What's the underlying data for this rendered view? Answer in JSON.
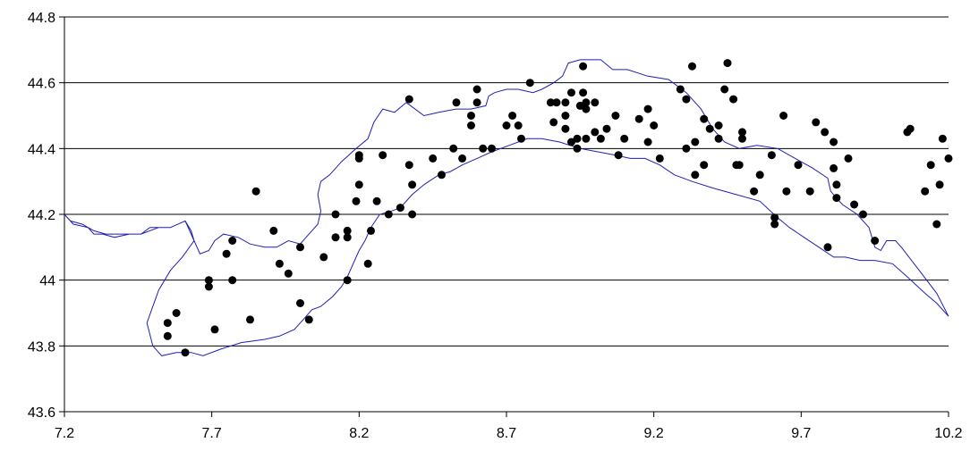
{
  "chart_data": {
    "type": "scatter",
    "title": "",
    "xlabel": "",
    "ylabel": "",
    "xlim": [
      7.2,
      10.2
    ],
    "ylim": [
      43.6,
      44.8
    ],
    "x_ticks": [
      "7.2",
      "7.7",
      "8.2",
      "8.7",
      "9.2",
      "9.7",
      "10.2"
    ],
    "y_ticks": [
      "44.8",
      "44.6",
      "44.4",
      "44.2",
      "44",
      "43.8",
      "43.6"
    ],
    "x_tick_values": [
      7.2,
      7.7,
      8.2,
      8.7,
      9.2,
      9.7,
      10.2
    ],
    "y_tick_values": [
      44.8,
      44.6,
      44.4,
      44.2,
      44.0,
      43.8,
      43.6
    ],
    "grid": "horizontal",
    "legend": "none",
    "colors": {
      "points": "#000000",
      "outline": "#1f1fb4",
      "grid": "#000000"
    },
    "series": [
      {
        "type": "scatter",
        "points": [
          [
            7.55,
            43.87
          ],
          [
            7.55,
            43.83
          ],
          [
            7.58,
            43.9
          ],
          [
            7.61,
            43.78
          ],
          [
            7.69,
            44.0
          ],
          [
            7.69,
            43.98
          ],
          [
            7.71,
            43.85
          ],
          [
            7.75,
            44.08
          ],
          [
            7.77,
            44.12
          ],
          [
            7.77,
            44.0
          ],
          [
            7.83,
            43.88
          ],
          [
            7.85,
            44.27
          ],
          [
            7.91,
            44.15
          ],
          [
            7.93,
            44.05
          ],
          [
            7.96,
            44.02
          ],
          [
            8.0,
            44.1
          ],
          [
            8.0,
            43.93
          ],
          [
            8.03,
            43.88
          ],
          [
            8.08,
            44.07
          ],
          [
            8.12,
            44.2
          ],
          [
            8.12,
            44.13
          ],
          [
            8.16,
            44.15
          ],
          [
            8.16,
            44.13
          ],
          [
            8.16,
            44.0
          ],
          [
            8.19,
            44.24
          ],
          [
            8.2,
            44.37
          ],
          [
            8.2,
            44.38
          ],
          [
            8.2,
            44.29
          ],
          [
            8.23,
            44.05
          ],
          [
            8.24,
            44.15
          ],
          [
            8.26,
            44.24
          ],
          [
            8.28,
            44.38
          ],
          [
            8.3,
            44.2
          ],
          [
            8.34,
            44.22
          ],
          [
            8.37,
            44.55
          ],
          [
            8.37,
            44.35
          ],
          [
            8.38,
            44.29
          ],
          [
            8.38,
            44.2
          ],
          [
            8.45,
            44.37
          ],
          [
            8.48,
            44.32
          ],
          [
            8.52,
            44.4
          ],
          [
            8.53,
            44.54
          ],
          [
            8.55,
            44.37
          ],
          [
            8.58,
            44.5
          ],
          [
            8.58,
            44.47
          ],
          [
            8.6,
            44.54
          ],
          [
            8.6,
            44.58
          ],
          [
            8.62,
            44.4
          ],
          [
            8.65,
            44.4
          ],
          [
            8.7,
            44.47
          ],
          [
            8.72,
            44.5
          ],
          [
            8.74,
            44.47
          ],
          [
            8.75,
            44.43
          ],
          [
            8.78,
            44.6
          ],
          [
            8.85,
            44.54
          ],
          [
            8.86,
            44.48
          ],
          [
            8.87,
            44.54
          ],
          [
            8.9,
            44.54
          ],
          [
            8.9,
            44.5
          ],
          [
            8.9,
            44.46
          ],
          [
            8.92,
            44.57
          ],
          [
            8.92,
            44.42
          ],
          [
            8.94,
            44.4
          ],
          [
            8.94,
            44.43
          ],
          [
            8.95,
            44.53
          ],
          [
            8.96,
            44.57
          ],
          [
            8.96,
            44.65
          ],
          [
            8.97,
            44.52
          ],
          [
            8.97,
            44.54
          ],
          [
            8.97,
            44.43
          ],
          [
            9.0,
            44.45
          ],
          [
            9.0,
            44.54
          ],
          [
            9.02,
            44.43
          ],
          [
            9.04,
            44.46
          ],
          [
            9.07,
            44.5
          ],
          [
            9.08,
            44.38
          ],
          [
            9.1,
            44.43
          ],
          [
            9.15,
            44.49
          ],
          [
            9.18,
            44.42
          ],
          [
            9.18,
            44.52
          ],
          [
            9.2,
            44.47
          ],
          [
            9.22,
            44.37
          ],
          [
            9.29,
            44.58
          ],
          [
            9.31,
            44.4
          ],
          [
            9.31,
            44.55
          ],
          [
            9.33,
            44.65
          ],
          [
            9.34,
            44.42
          ],
          [
            9.34,
            44.32
          ],
          [
            9.37,
            44.49
          ],
          [
            9.37,
            44.35
          ],
          [
            9.39,
            44.46
          ],
          [
            9.42,
            44.47
          ],
          [
            9.42,
            44.43
          ],
          [
            9.44,
            44.58
          ],
          [
            9.45,
            44.66
          ],
          [
            9.47,
            44.55
          ],
          [
            9.48,
            44.35
          ],
          [
            9.49,
            44.35
          ],
          [
            9.5,
            44.45
          ],
          [
            9.5,
            44.43
          ],
          [
            9.54,
            44.27
          ],
          [
            9.56,
            44.32
          ],
          [
            9.6,
            44.38
          ],
          [
            9.61,
            44.19
          ],
          [
            9.61,
            44.17
          ],
          [
            9.64,
            44.5
          ],
          [
            9.65,
            44.27
          ],
          [
            9.69,
            44.35
          ],
          [
            9.73,
            44.27
          ],
          [
            9.75,
            44.48
          ],
          [
            9.78,
            44.45
          ],
          [
            9.79,
            44.1
          ],
          [
            9.81,
            44.42
          ],
          [
            9.81,
            44.34
          ],
          [
            9.82,
            44.25
          ],
          [
            9.82,
            44.29
          ],
          [
            9.86,
            44.37
          ],
          [
            9.88,
            44.23
          ],
          [
            9.91,
            44.2
          ],
          [
            9.95,
            44.12
          ],
          [
            10.06,
            44.45
          ],
          [
            10.07,
            44.46
          ],
          [
            10.12,
            44.27
          ],
          [
            10.14,
            44.35
          ],
          [
            10.16,
            44.17
          ],
          [
            10.17,
            44.29
          ],
          [
            10.18,
            44.43
          ],
          [
            10.2,
            44.37
          ]
        ]
      },
      {
        "type": "line",
        "closed": true,
        "points": [
          [
            7.2,
            44.2
          ],
          [
            7.23,
            44.17
          ],
          [
            7.28,
            44.16
          ],
          [
            7.3,
            44.14
          ],
          [
            7.33,
            44.14
          ],
          [
            7.37,
            44.13
          ],
          [
            7.42,
            44.14
          ],
          [
            7.46,
            44.14
          ],
          [
            7.49,
            44.16
          ],
          [
            7.52,
            44.16
          ],
          [
            7.56,
            44.16
          ],
          [
            7.61,
            44.18
          ],
          [
            7.63,
            44.15
          ],
          [
            7.64,
            44.12
          ],
          [
            7.6,
            44.07
          ],
          [
            7.56,
            44.03
          ],
          [
            7.52,
            43.97
          ],
          [
            7.5,
            43.92
          ],
          [
            7.48,
            43.87
          ],
          [
            7.5,
            43.8
          ],
          [
            7.53,
            43.77
          ],
          [
            7.58,
            43.78
          ],
          [
            7.63,
            43.78
          ],
          [
            7.67,
            43.77
          ],
          [
            7.73,
            43.79
          ],
          [
            7.8,
            43.81
          ],
          [
            7.88,
            43.82
          ],
          [
            7.93,
            43.83
          ],
          [
            7.98,
            43.85
          ],
          [
            8.01,
            43.88
          ],
          [
            8.04,
            43.91
          ],
          [
            8.07,
            43.92
          ],
          [
            8.11,
            43.95
          ],
          [
            8.14,
            43.98
          ],
          [
            8.16,
            44.01
          ],
          [
            8.18,
            44.05
          ],
          [
            8.2,
            44.09
          ],
          [
            8.22,
            44.12
          ],
          [
            8.24,
            44.16
          ],
          [
            8.27,
            44.2
          ],
          [
            8.31,
            44.21
          ],
          [
            8.34,
            44.22
          ],
          [
            8.38,
            44.26
          ],
          [
            8.42,
            44.29
          ],
          [
            8.47,
            44.32
          ],
          [
            8.51,
            44.33
          ],
          [
            8.55,
            44.35
          ],
          [
            8.6,
            44.37
          ],
          [
            8.65,
            44.39
          ],
          [
            8.71,
            44.41
          ],
          [
            8.77,
            44.43
          ],
          [
            8.82,
            44.43
          ],
          [
            8.88,
            44.42
          ],
          [
            8.95,
            44.4
          ],
          [
            9.01,
            44.39
          ],
          [
            9.07,
            44.38
          ],
          [
            9.12,
            44.37
          ],
          [
            9.17,
            44.37
          ],
          [
            9.22,
            44.35
          ],
          [
            9.27,
            44.32
          ],
          [
            9.33,
            44.3
          ],
          [
            9.4,
            44.28
          ],
          [
            9.48,
            44.26
          ],
          [
            9.56,
            44.24
          ],
          [
            9.62,
            44.19
          ],
          [
            9.66,
            44.16
          ],
          [
            9.71,
            44.13
          ],
          [
            9.76,
            44.1
          ],
          [
            9.81,
            44.07
          ],
          [
            9.85,
            44.07
          ],
          [
            9.9,
            44.06
          ],
          [
            9.95,
            44.06
          ],
          [
            10.01,
            44.05
          ],
          [
            10.06,
            44.01
          ],
          [
            10.12,
            43.96
          ],
          [
            10.16,
            43.93
          ],
          [
            10.2,
            43.89
          ],
          [
            10.16,
            43.96
          ],
          [
            10.1,
            44.03
          ],
          [
            10.04,
            44.1
          ],
          [
            10.02,
            44.12
          ],
          [
            9.99,
            44.12
          ],
          [
            9.97,
            44.09
          ],
          [
            9.95,
            44.1
          ],
          [
            9.93,
            44.16
          ],
          [
            9.89,
            44.2
          ],
          [
            9.84,
            44.23
          ],
          [
            9.8,
            44.27
          ],
          [
            9.79,
            44.31
          ],
          [
            9.74,
            44.34
          ],
          [
            9.68,
            44.37
          ],
          [
            9.62,
            44.4
          ],
          [
            9.55,
            44.41
          ],
          [
            9.49,
            44.4
          ],
          [
            9.44,
            44.42
          ],
          [
            9.4,
            44.46
          ],
          [
            9.36,
            44.52
          ],
          [
            9.31,
            44.57
          ],
          [
            9.25,
            44.61
          ],
          [
            9.18,
            44.62
          ],
          [
            9.11,
            44.64
          ],
          [
            9.06,
            44.64
          ],
          [
            9.02,
            44.67
          ],
          [
            8.95,
            44.67
          ],
          [
            8.91,
            44.66
          ],
          [
            8.89,
            44.62
          ],
          [
            8.86,
            44.6
          ],
          [
            8.82,
            44.58
          ],
          [
            8.79,
            44.57
          ],
          [
            8.74,
            44.58
          ],
          [
            8.7,
            44.58
          ],
          [
            8.66,
            44.57
          ],
          [
            8.64,
            44.56
          ],
          [
            8.63,
            44.53
          ],
          [
            8.58,
            44.52
          ],
          [
            8.53,
            44.52
          ],
          [
            8.47,
            44.51
          ],
          [
            8.42,
            44.5
          ],
          [
            8.36,
            44.54
          ],
          [
            8.32,
            44.51
          ],
          [
            8.28,
            44.52
          ],
          [
            8.25,
            44.48
          ],
          [
            8.23,
            44.43
          ],
          [
            8.19,
            44.4
          ],
          [
            8.14,
            44.36
          ],
          [
            8.1,
            44.32
          ],
          [
            8.07,
            44.3
          ],
          [
            8.06,
            44.26
          ],
          [
            8.07,
            44.21
          ],
          [
            8.06,
            44.17
          ],
          [
            8.03,
            44.14
          ],
          [
            8.0,
            44.11
          ],
          [
            7.96,
            44.12
          ],
          [
            7.92,
            44.1
          ],
          [
            7.88,
            44.1
          ],
          [
            7.83,
            44.11
          ],
          [
            7.79,
            44.13
          ],
          [
            7.74,
            44.14
          ],
          [
            7.71,
            44.12
          ],
          [
            7.69,
            44.09
          ],
          [
            7.66,
            44.08
          ],
          [
            7.64,
            44.12
          ],
          [
            7.61,
            44.18
          ],
          [
            7.56,
            44.16
          ],
          [
            7.52,
            44.16
          ],
          [
            7.46,
            44.14
          ],
          [
            7.4,
            44.14
          ],
          [
            7.34,
            44.14
          ],
          [
            7.3,
            44.15
          ],
          [
            7.26,
            44.17
          ],
          [
            7.22,
            44.18
          ],
          [
            7.2,
            44.2
          ]
        ]
      }
    ]
  }
}
